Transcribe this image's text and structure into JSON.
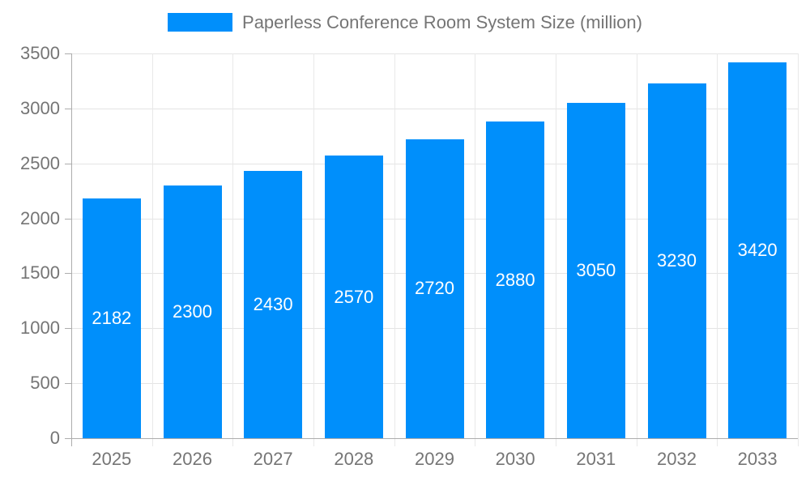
{
  "chart_data": {
    "type": "bar",
    "title": "Paperless Conference Room System Size (million)",
    "categories": [
      "2025",
      "2026",
      "2027",
      "2028",
      "2029",
      "2030",
      "2031",
      "2032",
      "2033"
    ],
    "values": [
      2182,
      2300,
      2430,
      2570,
      2720,
      2880,
      3050,
      3230,
      3420
    ],
    "xlabel": "",
    "ylabel": "",
    "ylim": [
      0,
      3500
    ],
    "yticks": [
      0,
      500,
      1000,
      1500,
      2000,
      2500,
      3000,
      3500
    ],
    "grid": true,
    "legend_position": "top",
    "bar_labels_inside": true
  },
  "legend": {
    "label": "Paperless Conference Room System Size (million)"
  },
  "colors": {
    "bar": "#008FFB",
    "bar_label": "#FFFFFF",
    "axis_text": "#757575",
    "legend_text": "#757575",
    "grid_h": "#E4E4E4",
    "grid_v": "#E8E8E8",
    "axis_line": "#ADADAD",
    "background": "#FFFFFF"
  }
}
